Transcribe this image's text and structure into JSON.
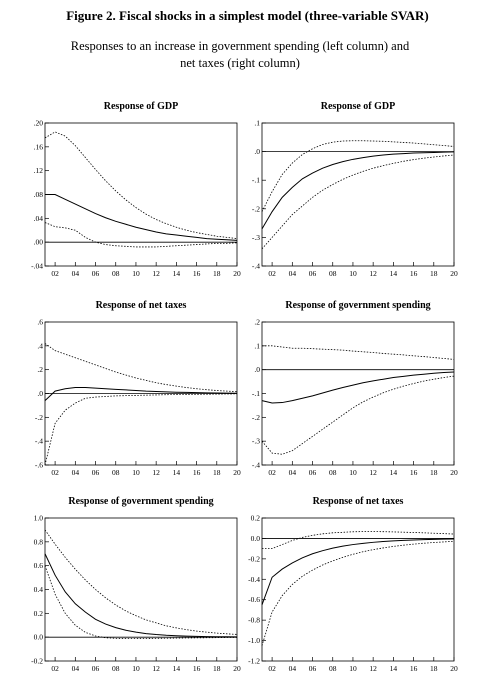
{
  "title": "Figure 2. Fiscal shocks in a simplest model (three-variable SVAR)",
  "subtitle": "Responses to an increase in government spending (left column) and net taxes (right column)",
  "chart_data": [
    {
      "type": "line",
      "title": "Response of GDP",
      "x": [
        1,
        2,
        3,
        4,
        5,
        6,
        7,
        8,
        9,
        10,
        11,
        12,
        13,
        14,
        15,
        16,
        17,
        18,
        19,
        20
      ],
      "xlim": [
        1,
        20
      ],
      "xticks": [
        {
          "value": 2,
          "label": "02"
        },
        {
          "value": 4,
          "label": "04"
        },
        {
          "value": 6,
          "label": "06"
        },
        {
          "value": 8,
          "label": "08"
        },
        {
          "value": 10,
          "label": "10"
        },
        {
          "value": 12,
          "label": "12"
        },
        {
          "value": 14,
          "label": "14"
        },
        {
          "value": 16,
          "label": "16"
        },
        {
          "value": 18,
          "label": "18"
        },
        {
          "value": 20,
          "label": "20"
        }
      ],
      "ylim": [
        -0.04,
        0.2
      ],
      "yticks": [
        {
          "value": -0.04,
          "label": "-.04"
        },
        {
          "value": 0,
          "label": ".00"
        },
        {
          "value": 0.04,
          "label": ".04"
        },
        {
          "value": 0.08,
          "label": ".08"
        },
        {
          "value": 0.12,
          "label": ".12"
        },
        {
          "value": 0.16,
          "label": ".16"
        },
        {
          "value": 0.2,
          "label": ".20"
        }
      ],
      "series": [
        {
          "color": "#000000",
          "line_style": "dotted",
          "values": [
            0.175,
            0.185,
            0.178,
            0.162,
            0.142,
            0.122,
            0.103,
            0.086,
            0.071,
            0.058,
            0.047,
            0.038,
            0.031,
            0.025,
            0.02,
            0.016,
            0.013,
            0.01,
            0.008,
            0.006
          ]
        },
        {
          "color": "#000000",
          "line_style": "solid",
          "values": [
            0.08,
            0.08,
            0.072,
            0.064,
            0.056,
            0.048,
            0.041,
            0.035,
            0.03,
            0.025,
            0.021,
            0.017,
            0.014,
            0.012,
            0.01,
            0.008,
            0.006,
            0.005,
            0.004,
            0.003
          ]
        },
        {
          "color": "#000000",
          "line_style": "dotted",
          "values": [
            0.033,
            0.026,
            0.024,
            0.02,
            0.008,
            0.0,
            -0.004,
            -0.006,
            -0.007,
            -0.008,
            -0.008,
            -0.008,
            -0.007,
            -0.006,
            -0.005,
            -0.004,
            -0.003,
            -0.002,
            -0.002,
            -0.001
          ]
        }
      ]
    },
    {
      "type": "line",
      "title": "Response of GDP",
      "x": [
        1,
        2,
        3,
        4,
        5,
        6,
        7,
        8,
        9,
        10,
        11,
        12,
        13,
        14,
        15,
        16,
        17,
        18,
        19,
        20
      ],
      "xlim": [
        1,
        20
      ],
      "xticks": [
        {
          "value": 2,
          "label": "02"
        },
        {
          "value": 4,
          "label": "04"
        },
        {
          "value": 6,
          "label": "06"
        },
        {
          "value": 8,
          "label": "08"
        },
        {
          "value": 10,
          "label": "10"
        },
        {
          "value": 12,
          "label": "12"
        },
        {
          "value": 14,
          "label": "14"
        },
        {
          "value": 16,
          "label": "16"
        },
        {
          "value": 18,
          "label": "18"
        },
        {
          "value": 20,
          "label": "20"
        }
      ],
      "ylim": [
        -0.4,
        0.1
      ],
      "yticks": [
        {
          "value": -0.4,
          "label": "-.4"
        },
        {
          "value": -0.3,
          "label": "-.3"
        },
        {
          "value": -0.2,
          "label": "-.2"
        },
        {
          "value": -0.1,
          "label": "-.1"
        },
        {
          "value": 0,
          "label": ".0"
        },
        {
          "value": 0.1,
          "label": ".1"
        }
      ],
      "series": [
        {
          "color": "#000000",
          "line_style": "dotted",
          "values": [
            -0.21,
            -0.14,
            -0.08,
            -0.04,
            -0.01,
            0.01,
            0.025,
            0.033,
            0.037,
            0.038,
            0.038,
            0.037,
            0.036,
            0.034,
            0.032,
            0.03,
            0.027,
            0.024,
            0.021,
            0.018
          ]
        },
        {
          "color": "#000000",
          "line_style": "solid",
          "values": [
            -0.27,
            -0.21,
            -0.16,
            -0.125,
            -0.095,
            -0.075,
            -0.058,
            -0.045,
            -0.035,
            -0.027,
            -0.021,
            -0.016,
            -0.012,
            -0.009,
            -0.007,
            -0.005,
            -0.004,
            -0.003,
            -0.002,
            -0.001
          ]
        },
        {
          "color": "#000000",
          "line_style": "dotted",
          "values": [
            -0.34,
            -0.3,
            -0.26,
            -0.22,
            -0.19,
            -0.16,
            -0.135,
            -0.115,
            -0.097,
            -0.082,
            -0.069,
            -0.058,
            -0.049,
            -0.041,
            -0.034,
            -0.028,
            -0.023,
            -0.019,
            -0.015,
            -0.012
          ]
        }
      ]
    },
    {
      "type": "line",
      "title": "Response of net taxes",
      "x": [
        1,
        2,
        3,
        4,
        5,
        6,
        7,
        8,
        9,
        10,
        11,
        12,
        13,
        14,
        15,
        16,
        17,
        18,
        19,
        20
      ],
      "xlim": [
        1,
        20
      ],
      "xticks": [
        {
          "value": 2,
          "label": "02"
        },
        {
          "value": 4,
          "label": "04"
        },
        {
          "value": 6,
          "label": "06"
        },
        {
          "value": 8,
          "label": "08"
        },
        {
          "value": 10,
          "label": "10"
        },
        {
          "value": 12,
          "label": "12"
        },
        {
          "value": 14,
          "label": "14"
        },
        {
          "value": 16,
          "label": "16"
        },
        {
          "value": 18,
          "label": "18"
        },
        {
          "value": 20,
          "label": "20"
        }
      ],
      "ylim": [
        -0.6,
        0.6
      ],
      "yticks": [
        {
          "value": -0.6,
          "label": "-.6"
        },
        {
          "value": -0.4,
          "label": "-.4"
        },
        {
          "value": -0.2,
          "label": "-.2"
        },
        {
          "value": 0,
          "label": ".0"
        },
        {
          "value": 0.2,
          "label": ".2"
        },
        {
          "value": 0.4,
          "label": ".4"
        },
        {
          "value": 0.6,
          "label": ".6"
        }
      ],
      "series": [
        {
          "color": "#000000",
          "line_style": "dotted",
          "values": [
            0.42,
            0.36,
            0.33,
            0.3,
            0.27,
            0.24,
            0.21,
            0.18,
            0.155,
            0.13,
            0.11,
            0.09,
            0.075,
            0.062,
            0.05,
            0.04,
            0.032,
            0.025,
            0.02,
            0.015
          ]
        },
        {
          "color": "#000000",
          "line_style": "solid",
          "values": [
            -0.06,
            0.02,
            0.04,
            0.05,
            0.05,
            0.045,
            0.04,
            0.035,
            0.03,
            0.025,
            0.02,
            0.017,
            0.014,
            0.011,
            0.009,
            0.007,
            0.005,
            0.004,
            0.003,
            0.002
          ]
        },
        {
          "color": "#000000",
          "line_style": "dotted",
          "values": [
            -0.6,
            -0.25,
            -0.14,
            -0.08,
            -0.04,
            -0.03,
            -0.025,
            -0.02,
            -0.018,
            -0.016,
            -0.014,
            -0.012,
            -0.01,
            -0.009,
            -0.008,
            -0.007,
            -0.006,
            -0.005,
            -0.004,
            -0.003
          ]
        }
      ]
    },
    {
      "type": "line",
      "title": "Response of government spending",
      "x": [
        1,
        2,
        3,
        4,
        5,
        6,
        7,
        8,
        9,
        10,
        11,
        12,
        13,
        14,
        15,
        16,
        17,
        18,
        19,
        20
      ],
      "xlim": [
        1,
        20
      ],
      "xticks": [
        {
          "value": 2,
          "label": "02"
        },
        {
          "value": 4,
          "label": "04"
        },
        {
          "value": 6,
          "label": "06"
        },
        {
          "value": 8,
          "label": "08"
        },
        {
          "value": 10,
          "label": "10"
        },
        {
          "value": 12,
          "label": "12"
        },
        {
          "value": 14,
          "label": "14"
        },
        {
          "value": 16,
          "label": "16"
        },
        {
          "value": 18,
          "label": "18"
        },
        {
          "value": 20,
          "label": "20"
        }
      ],
      "ylim": [
        -0.4,
        0.2
      ],
      "yticks": [
        {
          "value": -0.4,
          "label": "-.4"
        },
        {
          "value": -0.3,
          "label": "-.3"
        },
        {
          "value": -0.2,
          "label": "-.2"
        },
        {
          "value": -0.1,
          "label": "-.1"
        },
        {
          "value": 0,
          "label": ".0"
        },
        {
          "value": 0.1,
          "label": ".1"
        },
        {
          "value": 0.2,
          "label": ".2"
        }
      ],
      "series": [
        {
          "color": "#000000",
          "line_style": "dotted",
          "values": [
            0.1,
            0.1,
            0.095,
            0.09,
            0.09,
            0.088,
            0.086,
            0.084,
            0.082,
            0.078,
            0.075,
            0.072,
            0.068,
            0.065,
            0.062,
            0.058,
            0.055,
            0.051,
            0.047,
            0.043
          ]
        },
        {
          "color": "#000000",
          "line_style": "solid",
          "values": [
            -0.13,
            -0.14,
            -0.138,
            -0.13,
            -0.12,
            -0.11,
            -0.098,
            -0.086,
            -0.075,
            -0.065,
            -0.055,
            -0.047,
            -0.04,
            -0.033,
            -0.028,
            -0.023,
            -0.019,
            -0.015,
            -0.012,
            -0.01
          ]
        },
        {
          "color": "#000000",
          "line_style": "dotted",
          "values": [
            -0.3,
            -0.35,
            -0.355,
            -0.34,
            -0.31,
            -0.28,
            -0.25,
            -0.22,
            -0.19,
            -0.16,
            -0.135,
            -0.115,
            -0.097,
            -0.082,
            -0.069,
            -0.058,
            -0.048,
            -0.04,
            -0.033,
            -0.027
          ]
        }
      ]
    },
    {
      "type": "line",
      "title": "Response of government spending",
      "x": [
        1,
        2,
        3,
        4,
        5,
        6,
        7,
        8,
        9,
        10,
        11,
        12,
        13,
        14,
        15,
        16,
        17,
        18,
        19,
        20
      ],
      "xlim": [
        1,
        20
      ],
      "xticks": [
        {
          "value": 2,
          "label": "02"
        },
        {
          "value": 4,
          "label": "04"
        },
        {
          "value": 6,
          "label": "06"
        },
        {
          "value": 8,
          "label": "08"
        },
        {
          "value": 10,
          "label": "10"
        },
        {
          "value": 12,
          "label": "12"
        },
        {
          "value": 14,
          "label": "14"
        },
        {
          "value": 16,
          "label": "16"
        },
        {
          "value": 18,
          "label": "18"
        },
        {
          "value": 20,
          "label": "20"
        }
      ],
      "ylim": [
        -0.2,
        1.0
      ],
      "yticks": [
        {
          "value": -0.2,
          "label": "-0.2"
        },
        {
          "value": 0,
          "label": "0.0"
        },
        {
          "value": 0.2,
          "label": "0.2"
        },
        {
          "value": 0.4,
          "label": "0.4"
        },
        {
          "value": 0.6,
          "label": "0.6"
        },
        {
          "value": 0.8,
          "label": "0.8"
        },
        {
          "value": 1.0,
          "label": "1.0"
        }
      ],
      "series": [
        {
          "color": "#000000",
          "line_style": "dotted",
          "values": [
            0.9,
            0.78,
            0.67,
            0.57,
            0.48,
            0.4,
            0.33,
            0.27,
            0.22,
            0.18,
            0.145,
            0.12,
            0.095,
            0.078,
            0.063,
            0.051,
            0.042,
            0.034,
            0.028,
            0.023
          ]
        },
        {
          "color": "#000000",
          "line_style": "solid",
          "values": [
            0.7,
            0.52,
            0.38,
            0.28,
            0.21,
            0.15,
            0.11,
            0.08,
            0.058,
            0.042,
            0.03,
            0.022,
            0.016,
            0.012,
            0.009,
            0.007,
            0.005,
            0.004,
            0.003,
            0.002
          ]
        },
        {
          "color": "#000000",
          "line_style": "dotted",
          "values": [
            0.6,
            0.36,
            0.2,
            0.1,
            0.04,
            0.01,
            -0.005,
            -0.01,
            -0.012,
            -0.012,
            -0.011,
            -0.01,
            -0.009,
            -0.008,
            -0.007,
            -0.006,
            -0.005,
            -0.004,
            -0.003,
            -0.002
          ]
        }
      ]
    },
    {
      "type": "line",
      "title": "Response of net taxes",
      "x": [
        1,
        2,
        3,
        4,
        5,
        6,
        7,
        8,
        9,
        10,
        11,
        12,
        13,
        14,
        15,
        16,
        17,
        18,
        19,
        20
      ],
      "xlim": [
        1,
        20
      ],
      "xticks": [
        {
          "value": 2,
          "label": "02"
        },
        {
          "value": 4,
          "label": "04"
        },
        {
          "value": 6,
          "label": "06"
        },
        {
          "value": 8,
          "label": "08"
        },
        {
          "value": 10,
          "label": "10"
        },
        {
          "value": 12,
          "label": "12"
        },
        {
          "value": 14,
          "label": "14"
        },
        {
          "value": 16,
          "label": "16"
        },
        {
          "value": 18,
          "label": "18"
        },
        {
          "value": 20,
          "label": "20"
        }
      ],
      "ylim": [
        -1.2,
        0.2
      ],
      "yticks": [
        {
          "value": -1.2,
          "label": "-1.2"
        },
        {
          "value": -1.0,
          "label": "-1.0"
        },
        {
          "value": -0.8,
          "label": "-0.8"
        },
        {
          "value": -0.6,
          "label": "-0.6"
        },
        {
          "value": -0.4,
          "label": "-0.4"
        },
        {
          "value": -0.2,
          "label": "-0.2"
        },
        {
          "value": 0,
          "label": "0.0"
        },
        {
          "value": 0.2,
          "label": "0.2"
        }
      ],
      "series": [
        {
          "color": "#000000",
          "line_style": "dotted",
          "values": [
            -0.1,
            -0.1,
            -0.06,
            -0.02,
            0.01,
            0.03,
            0.045,
            0.055,
            0.06,
            0.065,
            0.067,
            0.067,
            0.066,
            0.064,
            0.061,
            0.058,
            0.055,
            0.051,
            0.047,
            0.043
          ]
        },
        {
          "color": "#000000",
          "line_style": "solid",
          "values": [
            -0.65,
            -0.38,
            -0.3,
            -0.24,
            -0.19,
            -0.15,
            -0.12,
            -0.095,
            -0.075,
            -0.06,
            -0.048,
            -0.038,
            -0.03,
            -0.024,
            -0.019,
            -0.015,
            -0.012,
            -0.009,
            -0.007,
            -0.005
          ]
        },
        {
          "color": "#000000",
          "line_style": "dotted",
          "values": [
            -1.05,
            -0.72,
            -0.56,
            -0.45,
            -0.37,
            -0.31,
            -0.26,
            -0.22,
            -0.185,
            -0.155,
            -0.13,
            -0.11,
            -0.093,
            -0.078,
            -0.066,
            -0.056,
            -0.047,
            -0.04,
            -0.034,
            -0.028
          ]
        }
      ]
    }
  ]
}
